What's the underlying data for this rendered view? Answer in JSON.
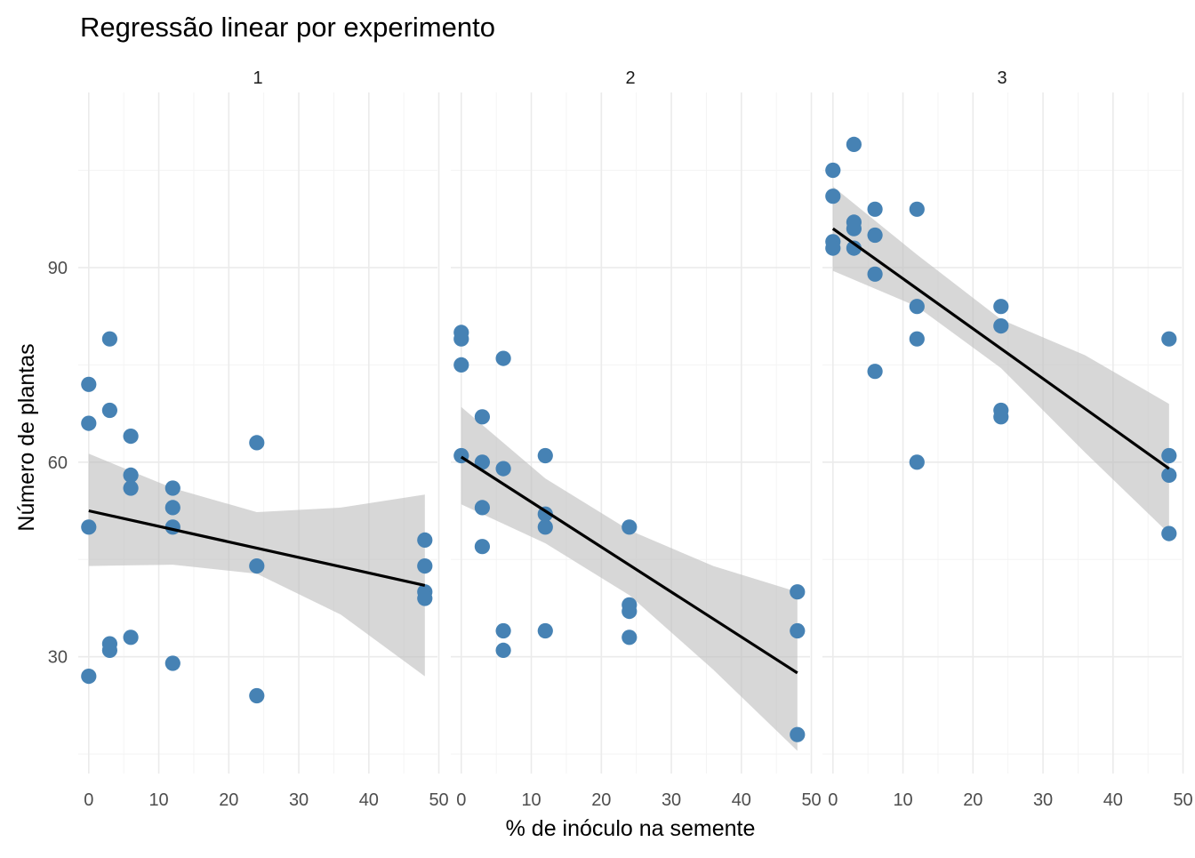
{
  "chart_data": {
    "type": "scatter",
    "title": "Regressão linear por experimento",
    "xlabel": "% de inóculo na semente",
    "ylabel": "Número de plantas",
    "xlim": [
      -1.5,
      49.8
    ],
    "ylim": [
      12,
      117
    ],
    "x_ticks": [
      0,
      10,
      20,
      30,
      40,
      50
    ],
    "y_ticks": [
      30,
      60,
      90
    ],
    "grid": true,
    "point_color": "#4682b4",
    "fit_line_color": "#000000",
    "ribbon_color": "#bebebe",
    "panels": [
      {
        "label": "1",
        "points": [
          [
            0,
            72
          ],
          [
            0,
            66
          ],
          [
            0,
            50
          ],
          [
            0,
            27
          ],
          [
            3,
            79
          ],
          [
            3,
            68
          ],
          [
            3,
            32
          ],
          [
            3,
            31
          ],
          [
            6,
            64
          ],
          [
            6,
            58
          ],
          [
            6,
            56
          ],
          [
            6,
            33
          ],
          [
            12,
            56
          ],
          [
            12,
            53
          ],
          [
            12,
            50
          ],
          [
            12,
            29
          ],
          [
            24,
            63
          ],
          [
            24,
            44
          ],
          [
            24,
            24
          ],
          [
            48,
            48
          ],
          [
            48,
            44
          ],
          [
            48,
            40
          ],
          [
            48,
            39
          ]
        ],
        "fit": {
          "x": [
            0,
            48
          ],
          "y": [
            52.5,
            41.0
          ]
        },
        "ribbon": {
          "x": [
            0,
            12,
            24,
            36,
            48
          ],
          "lower": [
            44.0,
            44.2,
            42.8,
            36.5,
            27.0
          ],
          "upper": [
            61.3,
            56.0,
            52.3,
            53.0,
            55.0
          ]
        }
      },
      {
        "label": "2",
        "points": [
          [
            0,
            80
          ],
          [
            0,
            79
          ],
          [
            0,
            75
          ],
          [
            0,
            61
          ],
          [
            3,
            67
          ],
          [
            3,
            60
          ],
          [
            3,
            53
          ],
          [
            3,
            47
          ],
          [
            6,
            76
          ],
          [
            6,
            59
          ],
          [
            6,
            34
          ],
          [
            6,
            31
          ],
          [
            12,
            61
          ],
          [
            12,
            52
          ],
          [
            12,
            50
          ],
          [
            12,
            34
          ],
          [
            24,
            50
          ],
          [
            24,
            38
          ],
          [
            24,
            37
          ],
          [
            24,
            33
          ],
          [
            48,
            40
          ],
          [
            48,
            34
          ],
          [
            48,
            18
          ]
        ],
        "fit": {
          "x": [
            0,
            48
          ],
          "y": [
            60.8,
            27.5
          ]
        },
        "ribbon": {
          "x": [
            0,
            12,
            24,
            36,
            48
          ],
          "lower": [
            53.5,
            47.5,
            39.5,
            28.0,
            15.5
          ],
          "upper": [
            68.5,
            57.5,
            49.5,
            44.0,
            40.0
          ]
        }
      },
      {
        "label": "3",
        "points": [
          [
            0,
            105
          ],
          [
            0,
            101
          ],
          [
            0,
            94
          ],
          [
            0,
            93
          ],
          [
            3,
            109
          ],
          [
            3,
            97
          ],
          [
            3,
            96
          ],
          [
            3,
            93
          ],
          [
            6,
            99
          ],
          [
            6,
            95
          ],
          [
            6,
            89
          ],
          [
            6,
            74
          ],
          [
            12,
            99
          ],
          [
            12,
            84
          ],
          [
            12,
            79
          ],
          [
            12,
            60
          ],
          [
            24,
            84
          ],
          [
            24,
            81
          ],
          [
            24,
            68
          ],
          [
            24,
            67
          ],
          [
            48,
            79
          ],
          [
            48,
            61
          ],
          [
            48,
            58
          ],
          [
            48,
            49
          ]
        ],
        "fit": {
          "x": [
            0,
            48
          ],
          "y": [
            96.0,
            59.0
          ]
        },
        "ribbon": {
          "x": [
            0,
            12,
            24,
            36,
            48
          ],
          "lower": [
            89.5,
            84.0,
            74.5,
            61.5,
            49.0
          ],
          "upper": [
            102.5,
            92.0,
            82.0,
            76.5,
            69.0
          ]
        }
      }
    ]
  }
}
